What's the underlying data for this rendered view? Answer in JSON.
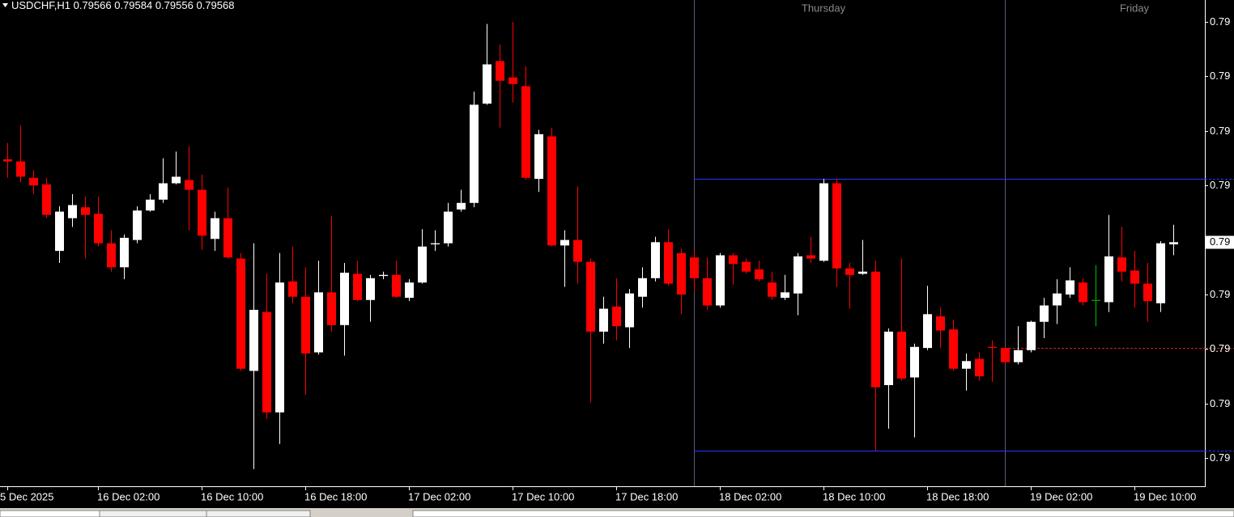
{
  "chart_data": {
    "type": "candlestick",
    "header": {
      "symbol": "USDCHF,H1",
      "open": 0.79566,
      "high": 0.79584,
      "low": 0.79556,
      "close": 0.79568
    },
    "days": [
      "Thursday",
      "Friday"
    ],
    "categories": [
      "5 Dec 2025",
      null,
      null,
      null,
      null,
      null,
      null,
      "16 Dec 02:00",
      null,
      null,
      null,
      null,
      null,
      null,
      null,
      "16 Dec 10:00",
      null,
      null,
      null,
      null,
      null,
      null,
      null,
      "16 Dec 18:00",
      null,
      null,
      null,
      null,
      null,
      null,
      null,
      "17 Dec 02:00",
      null,
      null,
      null,
      null,
      null,
      null,
      null,
      "17 Dec 10:00",
      null,
      null,
      null,
      null,
      null,
      null,
      null,
      "17 Dec 18:00",
      null,
      null,
      null,
      null,
      null,
      null,
      null,
      "18 Dec 02:00",
      null,
      null,
      null,
      null,
      null,
      null,
      null,
      "18 Dec 10:00",
      null,
      null,
      null,
      null,
      null,
      null,
      null,
      "18 Dec 18:00",
      null,
      null,
      null,
      null,
      null,
      null,
      null,
      "19 Dec 02:00",
      null,
      null,
      null,
      null,
      null,
      null,
      null,
      "19 Dec 10:00",
      null,
      null,
      null
    ],
    "open": [
      0.79644,
      0.79642,
      0.79627,
      0.79621,
      0.7956,
      0.7959,
      0.796,
      0.79594,
      0.79567,
      0.79545,
      0.7957,
      0.79597,
      0.79607,
      0.79622,
      0.79625,
      0.79616,
      0.79571,
      0.7959,
      0.79553,
      0.7945,
      0.79504,
      0.79412,
      0.79532,
      0.79518,
      0.79467,
      0.79522,
      0.79492,
      0.79539,
      0.79515,
      0.79537,
      0.79538,
      0.79517,
      0.79531,
      0.79566,
      0.79567,
      0.79598,
      0.79604,
      0.79695,
      0.79734,
      0.79719,
      0.79711,
      0.79626,
      0.79665,
      0.79565,
      0.7957,
      0.7955,
      0.79486,
      0.79509,
      0.7949,
      0.79518,
      0.79535,
      0.79568,
      0.79558,
      0.79554,
      0.79535,
      0.7951,
      0.79556,
      0.7955,
      0.79543,
      0.79531,
      0.79517,
      0.79521,
      0.79556,
      0.79551,
      0.79622,
      0.79544,
      0.79539,
      0.79541,
      0.79437,
      0.79486,
      0.79444,
      0.79471,
      0.795,
      0.79488,
      0.79452,
      0.79461,
      0.79472,
      0.79471,
      0.79458,
      0.79469,
      0.79495,
      0.7951,
      0.7952,
      0.79531,
      0.79515,
      0.79513,
      0.79554,
      0.79542,
      0.7953,
      0.79512,
      0.79566
    ],
    "high": [
      0.79659,
      0.79675,
      0.79634,
      0.79627,
      0.79601,
      0.79612,
      0.7961,
      0.7961,
      0.79579,
      0.79575,
      0.79601,
      0.79612,
      0.79645,
      0.79651,
      0.79656,
      0.7963,
      0.79596,
      0.79618,
      0.79558,
      0.79567,
      0.79539,
      0.79558,
      0.79564,
      0.79545,
      0.79551,
      0.79592,
      0.79549,
      0.79551,
      0.79538,
      0.79541,
      0.79551,
      0.79534,
      0.7958,
      0.79579,
      0.79604,
      0.79616,
      0.79706,
      0.79768,
      0.79749,
      0.7977,
      0.79729,
      0.79671,
      0.79673,
      0.79579,
      0.79619,
      0.79553,
      0.79518,
      0.79535,
      0.79525,
      0.79545,
      0.79573,
      0.7958,
      0.79562,
      0.7956,
      0.79554,
      0.79558,
      0.79558,
      0.79553,
      0.79551,
      0.79541,
      0.79538,
      0.79558,
      0.79573,
      0.79626,
      0.79626,
      0.79549,
      0.7957,
      0.79551,
      0.79489,
      0.79553,
      0.79475,
      0.79528,
      0.79508,
      0.79497,
      0.79466,
      0.79467,
      0.79478,
      0.79472,
      0.79491,
      0.79496,
      0.79517,
      0.79534,
      0.79545,
      0.79535,
      0.79547,
      0.79593,
      0.79582,
      0.7956,
      0.79549,
      0.79569,
      0.79584
    ],
    "low": [
      0.79627,
      0.79623,
      0.79612,
      0.7959,
      0.79549,
      0.79582,
      0.79553,
      0.79564,
      0.79541,
      0.79534,
      0.79567,
      0.79596,
      0.79604,
      0.79621,
      0.79579,
      0.79561,
      0.7956,
      0.79553,
      0.7945,
      0.7936,
      0.79406,
      0.79383,
      0.79512,
      0.79428,
      0.79465,
      0.79486,
      0.79464,
      0.79514,
      0.79495,
      0.79534,
      0.79517,
      0.79514,
      0.7953,
      0.7956,
      0.79564,
      0.79596,
      0.796,
      0.79694,
      0.79673,
      0.79696,
      0.79625,
      0.79614,
      0.79564,
      0.79527,
      0.7953,
      0.79421,
      0.79475,
      0.79478,
      0.79471,
      0.79508,
      0.79532,
      0.79528,
      0.79502,
      0.79523,
      0.79506,
      0.79508,
      0.79529,
      0.79539,
      0.79532,
      0.79515,
      0.79515,
      0.79501,
      0.79549,
      0.7955,
      0.79527,
      0.79507,
      0.79538,
      0.79377,
      0.79397,
      0.79441,
      0.79389,
      0.79469,
      0.79471,
      0.7945,
      0.79432,
      0.79441,
      0.7944,
      0.79456,
      0.79456,
      0.79467,
      0.7948,
      0.79493,
      0.79517,
      0.7951,
      0.79491,
      0.79504,
      0.79532,
      0.79508,
      0.79495,
      0.79504,
      0.79556
    ],
    "close": [
      0.79642,
      0.79628,
      0.7962,
      0.79593,
      0.79596,
      0.79602,
      0.79593,
      0.79567,
      0.79545,
      0.79572,
      0.79597,
      0.79607,
      0.79622,
      0.79628,
      0.79616,
      0.79574,
      0.7959,
      0.79554,
      0.79452,
      0.79506,
      0.79412,
      0.79531,
      0.79518,
      0.79466,
      0.79522,
      0.79492,
      0.7954,
      0.79515,
      0.79535,
      0.79538,
      0.79518,
      0.79531,
      0.79564,
      0.79567,
      0.79596,
      0.79604,
      0.79694,
      0.79731,
      0.79716,
      0.79713,
      0.79627,
      0.79667,
      0.79565,
      0.7957,
      0.7955,
      0.79486,
      0.79507,
      0.79491,
      0.79521,
      0.79535,
      0.79568,
      0.7953,
      0.7952,
      0.79535,
      0.7951,
      0.79556,
      0.79548,
      0.79541,
      0.79534,
      0.79518,
      0.79522,
      0.79555,
      0.79553,
      0.79622,
      0.79544,
      0.79538,
      0.79541,
      0.79435,
      0.79486,
      0.79443,
      0.79472,
      0.79502,
      0.79487,
      0.79452,
      0.79459,
      0.79445,
      0.79471,
      0.79458,
      0.79469,
      0.79495,
      0.7951,
      0.79521,
      0.79533,
      0.79513,
      0.79515,
      0.79555,
      0.79541,
      0.7953,
      0.79514,
      0.79567,
      0.79568
    ],
    "up_color": "#ffffff",
    "down_color": "#ff0000",
    "flat_color": "#00c000",
    "levels": [
      {
        "value": 0.79626,
        "color": "#2638ff",
        "dashed": false
      },
      {
        "value": 0.79377,
        "color": "#2638ff",
        "dashed": false
      },
      {
        "value": 0.79471,
        "color": "#d02020",
        "dashed": true
      }
    ],
    "bid": {
      "value": 0.79568,
      "label": "0.79"
    },
    "ylim": [
      0.79345,
      0.7979
    ],
    "yticks": [
      {
        "value": 0.7977,
        "label": "0.79"
      },
      {
        "value": 0.7972,
        "label": "0.79"
      },
      {
        "value": 0.7967,
        "label": "0.79"
      },
      {
        "value": 0.7962,
        "label": "0.79"
      },
      {
        "value": 0.7957,
        "label": "0.79"
      },
      {
        "value": 0.7952,
        "label": "0.79"
      },
      {
        "value": 0.7947,
        "label": "0.79"
      },
      {
        "value": 0.7942,
        "label": "0.79"
      },
      {
        "value": 0.7937,
        "label": "0.79"
      }
    ]
  }
}
